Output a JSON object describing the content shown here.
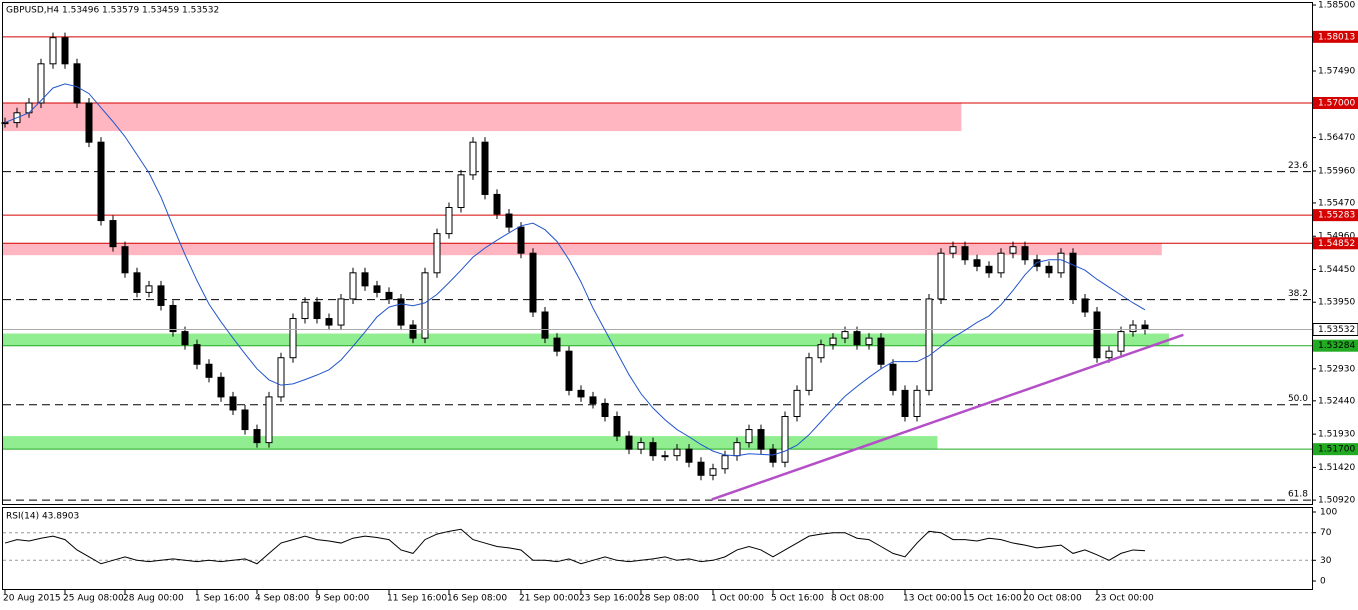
{
  "chart_data": {
    "type": "candlestick",
    "header": {
      "symbol": "GBPUSD,H4",
      "ohlc": [
        1.53496,
        1.53579,
        1.53459,
        1.53532
      ]
    },
    "categories": [
      "20 Aug 2015",
      null,
      null,
      null,
      null,
      "25 Aug 08:00",
      null,
      null,
      null,
      null,
      "28 Aug 00:00",
      null,
      null,
      null,
      null,
      null,
      "1 Sep 16:00",
      null,
      null,
      null,
      null,
      "4 Sep 08:00",
      null,
      null,
      null,
      null,
      "9 Sep 00:00",
      null,
      null,
      null,
      null,
      null,
      "11 Sep 16:00",
      null,
      null,
      null,
      null,
      "16 Sep 08:00",
      null,
      null,
      null,
      null,
      null,
      "21 Sep 00:00",
      null,
      null,
      null,
      null,
      "23 Sep 16:00",
      null,
      null,
      null,
      null,
      "28 Sep 08:00",
      null,
      null,
      null,
      null,
      null,
      "1 Oct 00:00",
      null,
      null,
      null,
      null,
      "5 Oct 16:00",
      null,
      null,
      null,
      null,
      "8 Oct 08:00",
      null,
      null,
      null,
      null,
      null,
      "13 Oct 00:00",
      null,
      null,
      null,
      null,
      "15 Oct 16:00",
      null,
      null,
      null,
      null,
      "20 Oct 08:00",
      null,
      null,
      null,
      null,
      null,
      "23 Oct 00:00",
      null,
      null,
      null,
      null
    ],
    "series": [
      {
        "name": "GBPUSD,H4",
        "color": "#000000",
        "values": [
          1.567,
          1.5685,
          1.57,
          1.576,
          1.58,
          1.576,
          1.57,
          1.564,
          1.552,
          1.548,
          1.544,
          1.541,
          1.542,
          1.539,
          1.535,
          1.533,
          1.53,
          1.528,
          1.525,
          1.523,
          1.52,
          1.518,
          1.525,
          1.531,
          1.537,
          1.5395,
          1.537,
          1.536,
          1.54,
          1.544,
          1.542,
          1.541,
          1.54,
          1.536,
          1.534,
          1.544,
          1.55,
          1.554,
          1.559,
          1.564,
          1.556,
          1.553,
          1.551,
          1.547,
          1.538,
          1.534,
          1.532,
          1.526,
          1.525,
          1.524,
          1.522,
          1.519,
          1.517,
          1.518,
          1.516,
          1.516,
          1.517,
          1.515,
          1.513,
          1.514,
          1.516,
          1.518,
          1.52,
          1.517,
          1.515,
          1.522,
          1.526,
          1.531,
          1.533,
          1.534,
          1.535,
          1.533,
          1.534,
          1.53,
          1.526,
          1.522,
          1.526,
          1.54,
          1.547,
          1.548,
          1.546,
          1.545,
          1.544,
          1.547,
          1.548,
          1.546,
          1.545,
          1.544,
          1.547,
          1.54,
          1.538,
          1.531,
          1.532,
          1.535,
          1.536,
          1.53532
        ]
      }
    ],
    "moving_average_color": "#2255cc",
    "ylim": [
      1.50845,
      1.58577
    ],
    "yticks": [
      {
        "value": 1.585,
        "label": "1.58500"
      },
      {
        "value": 1.5799,
        "label": "1.57990"
      },
      {
        "value": 1.5749,
        "label": "1.57490"
      },
      {
        "value": 1.5698,
        "label": "1.56980"
      },
      {
        "value": 1.5647,
        "label": "1.56470"
      },
      {
        "value": 1.5596,
        "label": "1.55960"
      },
      {
        "value": 1.5547,
        "label": "1.55470"
      },
      {
        "value": 1.5496,
        "label": "1.54960"
      },
      {
        "value": 1.5445,
        "label": "1.54450"
      },
      {
        "value": 1.5395,
        "label": "1.53950"
      },
      {
        "value": 1.5293,
        "label": "1.52930"
      },
      {
        "value": 1.5244,
        "label": "1.52440"
      },
      {
        "value": 1.5193,
        "label": "1.51930"
      },
      {
        "value": 1.5142,
        "label": "1.51420"
      },
      {
        "value": 1.5092,
        "label": "1.50920"
      }
    ],
    "zones": [
      {
        "from": 1.5657,
        "to": 1.57,
        "end": 79.7,
        "color": "#ffb6c1"
      },
      {
        "from": 1.5467,
        "to": 1.54852,
        "end": 96.4,
        "color": "#ffb6c1"
      },
      {
        "from": 1.53284,
        "to": 1.5347,
        "end": 97,
        "color": "#90ee90"
      },
      {
        "from": 1.517,
        "to": 1.519,
        "end": 77.7,
        "color": "#90ee90"
      }
    ],
    "levels": [
      {
        "price": 1.58013,
        "color": "#d40000"
      },
      {
        "price": {
          "value": 1.57,
          "label": "1.57000"
        },
        "color": "#d40000"
      },
      {
        "price": 1.55283,
        "color": "#d40000"
      },
      {
        "price": 1.54852,
        "color": "#d40000"
      },
      {
        "price": 1.53284,
        "color": "#22aa22"
      },
      {
        "price": {
          "value": 1.517,
          "label": "1.51700"
        },
        "color": "#22aa22"
      }
    ],
    "fib_levels": [
      {
        "label": "23.6",
        "price": 1.5595
      },
      {
        "label": "38.2",
        "price": 1.5399
      },
      {
        "label": "50.0",
        "price": 1.5238
      },
      {
        "label": "61.8",
        "price": 1.5092
      }
    ],
    "trendline": {
      "color": "#b44fc8",
      "x": [
        58.9,
        98.2
      ],
      "y": [
        1.5093,
        1.5345
      ]
    },
    "rsi": {
      "title": "RSI(14) 43.8903",
      "color": "#000000",
      "ylim": [
        0,
        100
      ],
      "yticks": [
        0,
        30,
        70,
        100
      ],
      "values": [
        55,
        60,
        58,
        62,
        65,
        60,
        45,
        35,
        25,
        30,
        35,
        30,
        28,
        30,
        32,
        30,
        28,
        30,
        28,
        30,
        32,
        25,
        40,
        55,
        60,
        65,
        60,
        58,
        55,
        62,
        65,
        63,
        60,
        45,
        40,
        60,
        68,
        72,
        75,
        60,
        55,
        50,
        48,
        45,
        30,
        30,
        28,
        32,
        25,
        30,
        35,
        30,
        28,
        30,
        32,
        35,
        30,
        32,
        28,
        30,
        35,
        45,
        50,
        45,
        35,
        45,
        55,
        65,
        68,
        70,
        70,
        62,
        60,
        50,
        40,
        35,
        55,
        72,
        70,
        60,
        60,
        58,
        62,
        60,
        55,
        52,
        48,
        50,
        52,
        40,
        45,
        38,
        30,
        40,
        45,
        43.8903
      ]
    }
  }
}
